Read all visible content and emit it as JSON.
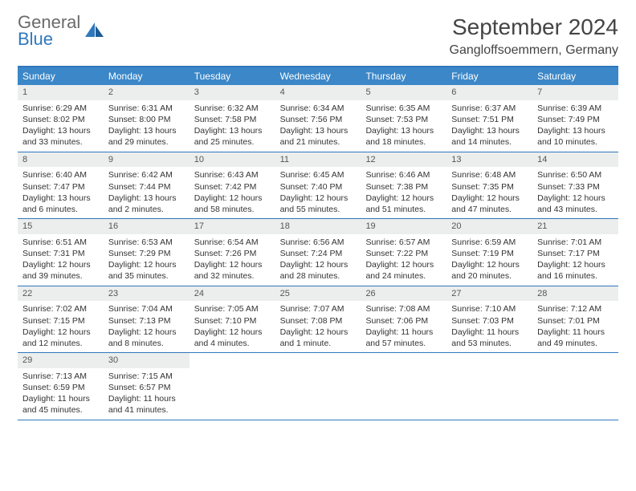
{
  "brand": {
    "word1": "General",
    "word2": "Blue"
  },
  "header": {
    "month_title": "September 2024",
    "location": "Gangloffsoemmern, Germany"
  },
  "styling": {
    "accent_color": "#3b87c8",
    "border_color": "#2f78bd",
    "daynum_bg": "#eceeee",
    "body_bg": "#ffffff",
    "text_color": "#333333",
    "weekday_fontsize": 12,
    "daynum_fontsize": 11,
    "body_fontsize": 10.5,
    "title_fontsize": 28,
    "location_fontsize": 16,
    "logo_fontsize": 22,
    "columns": 7,
    "rows": 5
  },
  "weekdays": [
    "Sunday",
    "Monday",
    "Tuesday",
    "Wednesday",
    "Thursday",
    "Friday",
    "Saturday"
  ],
  "days": [
    {
      "n": "1",
      "sunrise": "Sunrise: 6:29 AM",
      "sunset": "Sunset: 8:02 PM",
      "day1": "Daylight: 13 hours",
      "day2": "and 33 minutes."
    },
    {
      "n": "2",
      "sunrise": "Sunrise: 6:31 AM",
      "sunset": "Sunset: 8:00 PM",
      "day1": "Daylight: 13 hours",
      "day2": "and 29 minutes."
    },
    {
      "n": "3",
      "sunrise": "Sunrise: 6:32 AM",
      "sunset": "Sunset: 7:58 PM",
      "day1": "Daylight: 13 hours",
      "day2": "and 25 minutes."
    },
    {
      "n": "4",
      "sunrise": "Sunrise: 6:34 AM",
      "sunset": "Sunset: 7:56 PM",
      "day1": "Daylight: 13 hours",
      "day2": "and 21 minutes."
    },
    {
      "n": "5",
      "sunrise": "Sunrise: 6:35 AM",
      "sunset": "Sunset: 7:53 PM",
      "day1": "Daylight: 13 hours",
      "day2": "and 18 minutes."
    },
    {
      "n": "6",
      "sunrise": "Sunrise: 6:37 AM",
      "sunset": "Sunset: 7:51 PM",
      "day1": "Daylight: 13 hours",
      "day2": "and 14 minutes."
    },
    {
      "n": "7",
      "sunrise": "Sunrise: 6:39 AM",
      "sunset": "Sunset: 7:49 PM",
      "day1": "Daylight: 13 hours",
      "day2": "and 10 minutes."
    },
    {
      "n": "8",
      "sunrise": "Sunrise: 6:40 AM",
      "sunset": "Sunset: 7:47 PM",
      "day1": "Daylight: 13 hours",
      "day2": "and 6 minutes."
    },
    {
      "n": "9",
      "sunrise": "Sunrise: 6:42 AM",
      "sunset": "Sunset: 7:44 PM",
      "day1": "Daylight: 13 hours",
      "day2": "and 2 minutes."
    },
    {
      "n": "10",
      "sunrise": "Sunrise: 6:43 AM",
      "sunset": "Sunset: 7:42 PM",
      "day1": "Daylight: 12 hours",
      "day2": "and 58 minutes."
    },
    {
      "n": "11",
      "sunrise": "Sunrise: 6:45 AM",
      "sunset": "Sunset: 7:40 PM",
      "day1": "Daylight: 12 hours",
      "day2": "and 55 minutes."
    },
    {
      "n": "12",
      "sunrise": "Sunrise: 6:46 AM",
      "sunset": "Sunset: 7:38 PM",
      "day1": "Daylight: 12 hours",
      "day2": "and 51 minutes."
    },
    {
      "n": "13",
      "sunrise": "Sunrise: 6:48 AM",
      "sunset": "Sunset: 7:35 PM",
      "day1": "Daylight: 12 hours",
      "day2": "and 47 minutes."
    },
    {
      "n": "14",
      "sunrise": "Sunrise: 6:50 AM",
      "sunset": "Sunset: 7:33 PM",
      "day1": "Daylight: 12 hours",
      "day2": "and 43 minutes."
    },
    {
      "n": "15",
      "sunrise": "Sunrise: 6:51 AM",
      "sunset": "Sunset: 7:31 PM",
      "day1": "Daylight: 12 hours",
      "day2": "and 39 minutes."
    },
    {
      "n": "16",
      "sunrise": "Sunrise: 6:53 AM",
      "sunset": "Sunset: 7:29 PM",
      "day1": "Daylight: 12 hours",
      "day2": "and 35 minutes."
    },
    {
      "n": "17",
      "sunrise": "Sunrise: 6:54 AM",
      "sunset": "Sunset: 7:26 PM",
      "day1": "Daylight: 12 hours",
      "day2": "and 32 minutes."
    },
    {
      "n": "18",
      "sunrise": "Sunrise: 6:56 AM",
      "sunset": "Sunset: 7:24 PM",
      "day1": "Daylight: 12 hours",
      "day2": "and 28 minutes."
    },
    {
      "n": "19",
      "sunrise": "Sunrise: 6:57 AM",
      "sunset": "Sunset: 7:22 PM",
      "day1": "Daylight: 12 hours",
      "day2": "and 24 minutes."
    },
    {
      "n": "20",
      "sunrise": "Sunrise: 6:59 AM",
      "sunset": "Sunset: 7:19 PM",
      "day1": "Daylight: 12 hours",
      "day2": "and 20 minutes."
    },
    {
      "n": "21",
      "sunrise": "Sunrise: 7:01 AM",
      "sunset": "Sunset: 7:17 PM",
      "day1": "Daylight: 12 hours",
      "day2": "and 16 minutes."
    },
    {
      "n": "22",
      "sunrise": "Sunrise: 7:02 AM",
      "sunset": "Sunset: 7:15 PM",
      "day1": "Daylight: 12 hours",
      "day2": "and 12 minutes."
    },
    {
      "n": "23",
      "sunrise": "Sunrise: 7:04 AM",
      "sunset": "Sunset: 7:13 PM",
      "day1": "Daylight: 12 hours",
      "day2": "and 8 minutes."
    },
    {
      "n": "24",
      "sunrise": "Sunrise: 7:05 AM",
      "sunset": "Sunset: 7:10 PM",
      "day1": "Daylight: 12 hours",
      "day2": "and 4 minutes."
    },
    {
      "n": "25",
      "sunrise": "Sunrise: 7:07 AM",
      "sunset": "Sunset: 7:08 PM",
      "day1": "Daylight: 12 hours",
      "day2": "and 1 minute."
    },
    {
      "n": "26",
      "sunrise": "Sunrise: 7:08 AM",
      "sunset": "Sunset: 7:06 PM",
      "day1": "Daylight: 11 hours",
      "day2": "and 57 minutes."
    },
    {
      "n": "27",
      "sunrise": "Sunrise: 7:10 AM",
      "sunset": "Sunset: 7:03 PM",
      "day1": "Daylight: 11 hours",
      "day2": "and 53 minutes."
    },
    {
      "n": "28",
      "sunrise": "Sunrise: 7:12 AM",
      "sunset": "Sunset: 7:01 PM",
      "day1": "Daylight: 11 hours",
      "day2": "and 49 minutes."
    },
    {
      "n": "29",
      "sunrise": "Sunrise: 7:13 AM",
      "sunset": "Sunset: 6:59 PM",
      "day1": "Daylight: 11 hours",
      "day2": "and 45 minutes."
    },
    {
      "n": "30",
      "sunrise": "Sunrise: 7:15 AM",
      "sunset": "Sunset: 6:57 PM",
      "day1": "Daylight: 11 hours",
      "day2": "and 41 minutes."
    }
  ]
}
